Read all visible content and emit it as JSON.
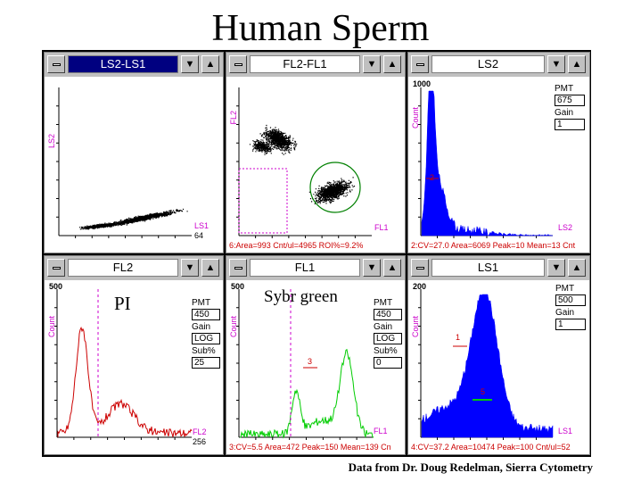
{
  "title": "Human Sperm",
  "credit": "Data from Dr. Doug Redelman, Sierra Cytometry",
  "colors": {
    "accent_magenta": "#cc00cc",
    "stats_red": "#cc0000",
    "hist_blue": "#0000ff",
    "hist_red": "#cc0000",
    "hist_green": "#00cc00",
    "gate_green": "#008000",
    "active_title": "#000080"
  },
  "windows": [
    {
      "title": "LS2-LS1",
      "active": true,
      "ylabel": "LS2",
      "xlabel": "LS1",
      "xmax": "64",
      "stats": ""
    },
    {
      "title": "FL2-FL1",
      "active": false,
      "ylabel": "FL2",
      "xlabel": "FL1",
      "xmax": "64",
      "stats": "6:Area=993 Cnt/ul=4965 ROI%=9.2%"
    },
    {
      "title": "LS2",
      "active": false,
      "ylabel": "Count",
      "xlabel": "LS2",
      "xmax": "256",
      "ymax": "1000",
      "marker": "2",
      "pmt": {
        "label": "PMT",
        "value": "675",
        "gain_label": "Gain",
        "gain": "1"
      },
      "stats": "2:CV=27.0 Area=6069 Peak=10 Mean=13 Cnt"
    },
    {
      "title": "FL2",
      "active": false,
      "ylabel": "Count",
      "xlabel": "FL2",
      "xmax": "256",
      "ymax": "500",
      "annotation": "PI",
      "pmt": {
        "label": "PMT",
        "value": "450",
        "gain_label": "Gain",
        "gain": "LOG",
        "sub_label": "Sub%",
        "sub": "25"
      },
      "stats": ""
    },
    {
      "title": "FL1",
      "active": false,
      "ylabel": "Count",
      "xlabel": "FL1",
      "xmax": "256",
      "ymax": "500",
      "annotation": "Sybr green",
      "marker": "3",
      "pmt": {
        "label": "PMT",
        "value": "450",
        "gain_label": "Gain",
        "gain": "LOG",
        "sub_label": "Sub%",
        "sub": "0"
      },
      "stats": "3:CV=5.5 Area=472 Peak=150 Mean=139 Cn"
    },
    {
      "title": "LS1",
      "active": false,
      "ylabel": "Count",
      "xlabel": "LS1",
      "xmax": "256",
      "ymax": "200",
      "marker": "1",
      "marker2": "5",
      "pmt": {
        "label": "PMT",
        "value": "500",
        "gain_label": "Gain",
        "gain": "1"
      },
      "stats": "4:CV=37.2 Area=10474 Peak=100 Cnt/ul=52"
    }
  ]
}
